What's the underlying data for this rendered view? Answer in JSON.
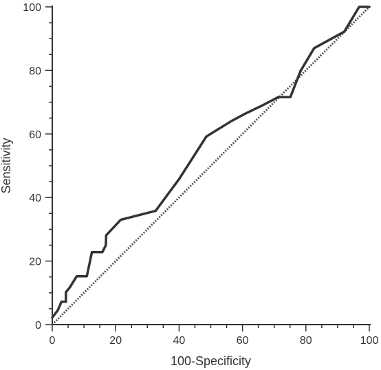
{
  "chart_data": {
    "type": "line",
    "title": "",
    "xlabel": "100-Specificity",
    "ylabel": "Sensitivity",
    "xlim": [
      0,
      100
    ],
    "ylim": [
      0,
      100
    ],
    "grid": false,
    "legend": "none",
    "x_ticks": [
      0,
      20,
      40,
      60,
      80,
      100
    ],
    "y_ticks": [
      0,
      20,
      40,
      60,
      80,
      100
    ],
    "x_tick_labels": [
      "0",
      "20",
      "40",
      "60",
      "80",
      "100"
    ],
    "y_tick_labels": [
      "0",
      "20",
      "40",
      "60",
      "80",
      "100"
    ],
    "colors": {
      "curve": "#333333",
      "reference": "#555555",
      "axis": "#333333"
    },
    "series": [
      {
        "type": "line",
        "values": [
          [
            0,
            2.2
          ],
          [
            1.8,
            4.6
          ],
          [
            2.9,
            7.2
          ],
          [
            4.3,
            7.2
          ],
          [
            4.3,
            10.2
          ],
          [
            5.6,
            11.8
          ],
          [
            7.7,
            15.2
          ],
          [
            10.9,
            15.2
          ],
          [
            12.5,
            22.8
          ],
          [
            15.8,
            22.8
          ],
          [
            16.9,
            25.0
          ],
          [
            17.0,
            28.1
          ],
          [
            21.6,
            33.0
          ],
          [
            32.6,
            35.8
          ],
          [
            40.0,
            45.8
          ],
          [
            48.6,
            59.2
          ],
          [
            56.4,
            64.0
          ],
          [
            60.9,
            66.4
          ],
          [
            66.3,
            69.0
          ],
          [
            71.3,
            71.6
          ],
          [
            75.1,
            71.6
          ],
          [
            78.3,
            79.8
          ],
          [
            82.6,
            87.0
          ],
          [
            92.1,
            92.2
          ],
          [
            96.8,
            100
          ],
          [
            100,
            100
          ]
        ]
      },
      {
        "type": "reference-diagonal",
        "values": [
          [
            0,
            0
          ],
          [
            100,
            100
          ]
        ]
      }
    ]
  }
}
